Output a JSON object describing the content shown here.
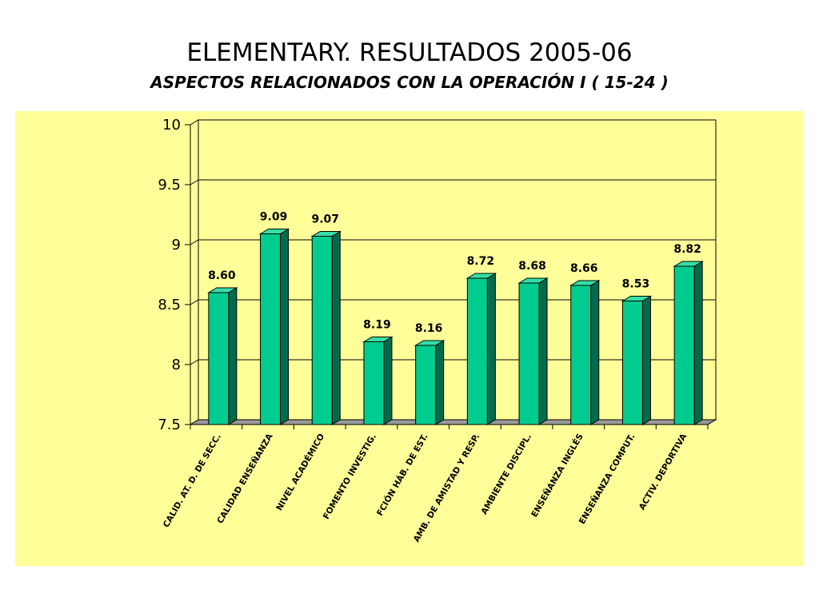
{
  "chart_data": {
    "type": "bar",
    "title": "ELEMENTARY. RESULTADOS 2005-06",
    "subtitle": "ASPECTOS RELACIONADOS CON LA OPERACIÓN  I ( 15-24 )",
    "categories": [
      "CALID. AT. D. DE SECC.",
      "CALIDAD ENSEÑANZA",
      "NIVEL ACADÉMICO",
      "FOMENTO INVESTIG.",
      "FCIÓN HÁB. DE EST.",
      "AMB. DE AMISTAD Y RESP.",
      "AMBIENTE DISCIPL.",
      "ENSEÑANZA INGLÉS",
      "ENSEÑANZA COMPUT.",
      "ACTIV. DEPORTIVA"
    ],
    "values": [
      8.6,
      9.09,
      9.07,
      8.19,
      8.16,
      8.72,
      8.68,
      8.66,
      8.53,
      8.82
    ],
    "data_labels": [
      "8.60",
      "9.09",
      "9.07",
      "8.19",
      "8.16",
      "8.72",
      "8.68",
      "8.66",
      "8.53",
      "8.82"
    ],
    "yticks": [
      "7.5",
      "8",
      "8.5",
      "9",
      "9.5",
      "10"
    ],
    "ylim": [
      7.5,
      10
    ],
    "grid": true,
    "legend": "none",
    "colors": {
      "bar_front": "#00cc8f",
      "bar_side": "#006b4a",
      "bar_top": "#33e0a8",
      "plot_background": "#ffff99",
      "floor": "#999999"
    }
  }
}
